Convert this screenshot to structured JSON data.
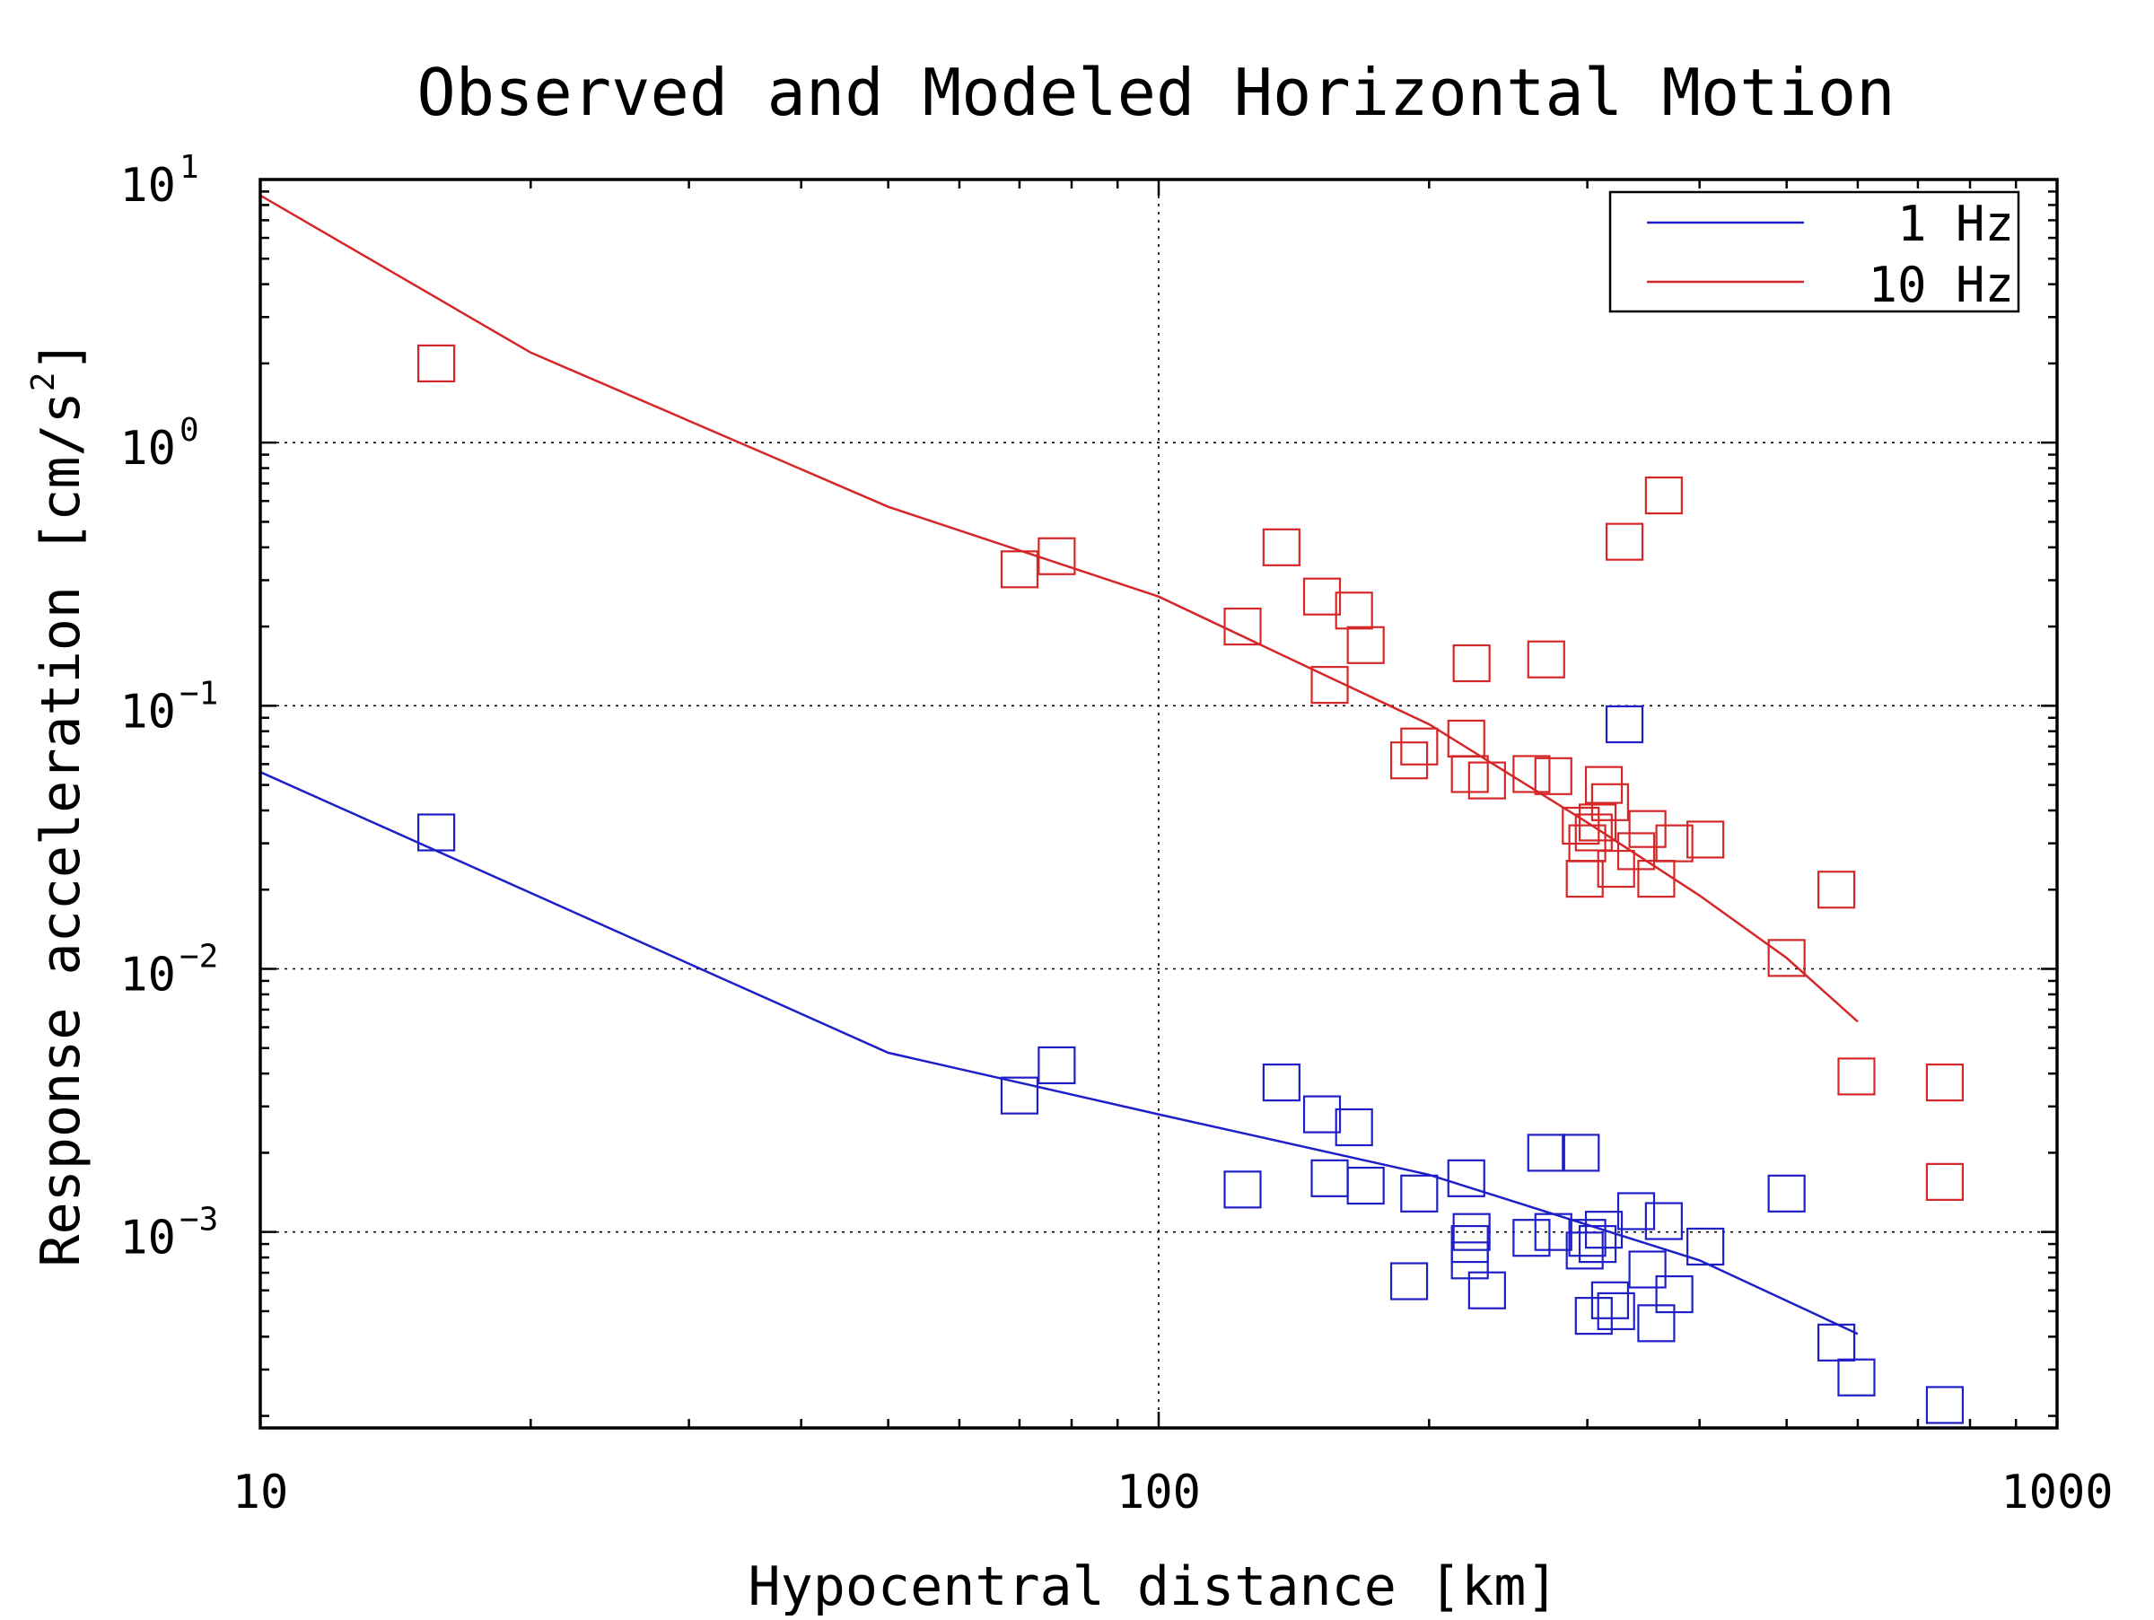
{
  "chart_data": {
    "type": "scatter",
    "title": "Observed and Modeled Horizontal Motion",
    "xlabel": "Hypocentral distance [km]",
    "ylabel_main": "Response acceleration [cm/s",
    "ylabel_sup": "2",
    "ylabel_end": "]",
    "xscale": "log",
    "yscale": "log",
    "xlim": [
      10,
      1000
    ],
    "ylim": [
      0.00018,
      10
    ],
    "x_ticks": [
      {
        "value": 10,
        "label": "10"
      },
      {
        "value": 100,
        "label": "100"
      },
      {
        "value": 1000,
        "label": "1000"
      }
    ],
    "y_ticks": [
      {
        "value": 10,
        "base": "10",
        "exp": "1"
      },
      {
        "value": 1,
        "base": "10",
        "exp": "0"
      },
      {
        "value": 0.1,
        "base": "10",
        "exp": "−1"
      },
      {
        "value": 0.01,
        "base": "10",
        "exp": "−2"
      },
      {
        "value": 0.001,
        "base": "10",
        "exp": "−3"
      }
    ],
    "grid": true,
    "legend_position": "top-right",
    "series": [
      {
        "name": "1 Hz",
        "color": "#1f1fc8",
        "model_line": {
          "x": [
            10,
            50,
            100,
            200,
            400,
            600
          ],
          "y": [
            0.056,
            0.0048,
            0.0028,
            0.00165,
            0.00078,
            0.00041
          ]
        },
        "observed": {
          "marker": "open-square",
          "x": [
            15.7,
            70,
            77,
            124,
            137,
            152,
            155,
            165,
            170,
            190,
            195,
            220,
            222,
            223,
            222,
            232,
            260,
            270,
            275,
            295,
            298,
            300,
            305,
            308,
            313,
            318,
            323,
            330,
            340,
            350,
            358,
            365,
            375,
            406,
            500,
            568,
            598,
            750
          ],
          "y": [
            0.033,
            0.0033,
            0.0043,
            0.00145,
            0.0037,
            0.0028,
            0.0016,
            0.0025,
            0.0015,
            0.00065,
            0.0014,
            0.0016,
            0.00078,
            0.001,
            0.0009,
            0.0006,
            0.00095,
            0.002,
            0.001,
            0.002,
            0.00085,
            0.00095,
            0.00048,
            0.0009,
            0.00102,
            0.00055,
            0.0005,
            0.085,
            0.0012,
            0.00072,
            0.00045,
            0.0011,
            0.00058,
            0.00088,
            0.0014,
            0.00038,
            0.00028,
            0.00022
          ]
        }
      },
      {
        "name": "10 Hz",
        "color": "#d62728",
        "model_line": {
          "x": [
            10,
            20,
            50,
            100,
            150,
            200,
            300,
            400,
            500,
            600
          ],
          "y": [
            8.7,
            2.2,
            0.57,
            0.26,
            0.135,
            0.085,
            0.036,
            0.019,
            0.011,
            0.0063
          ]
        },
        "observed": {
          "marker": "open-square",
          "x": [
            15.7,
            70,
            77,
            124,
            137,
            152,
            155,
            165,
            170,
            190,
            195,
            220,
            222,
            223,
            232,
            260,
            270,
            275,
            295,
            298,
            300,
            305,
            308,
            313,
            318,
            323,
            330,
            340,
            350,
            358,
            365,
            375,
            406,
            500,
            568,
            598,
            750
          ],
          "y": [
            2.0,
            0.33,
            0.37,
            0.2,
            0.4,
            0.26,
            0.12,
            0.23,
            0.17,
            0.062,
            0.07,
            0.075,
            0.055,
            0.145,
            0.052,
            0.055,
            0.15,
            0.054,
            0.035,
            0.022,
            0.03,
            0.033,
            0.036,
            0.05,
            0.043,
            0.024,
            0.42,
            0.028,
            0.034,
            0.022,
            0.63,
            0.03,
            0.031,
            0.011,
            0.02,
            0.0039,
            0.0037
          ]
        }
      }
    ],
    "extra_observed_red": {
      "x": [
        750
      ],
      "y": [
        0.00155
      ]
    }
  }
}
